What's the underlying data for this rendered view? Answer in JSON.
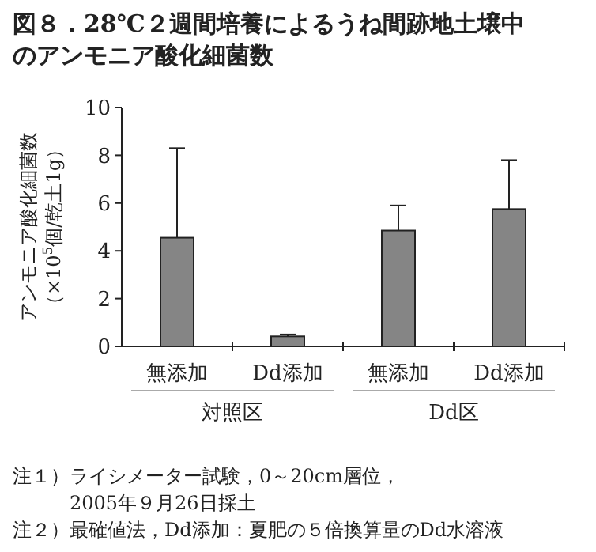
{
  "chart_data": {
    "type": "bar",
    "title": "図８．28℃２週間培養によるうね間跡地土壌中のアンモニア酸化細菌数",
    "ylabel": "アンモニア酸化細菌数（×10$^{5}$個/乾土1g）",
    "categories": [
      "無添加",
      "Dd添加",
      "無添加",
      "Dd添加"
    ],
    "values": [
      4.55,
      0.42,
      4.85,
      5.75
    ],
    "errors": [
      [
        4.55,
        8.3
      ],
      [
        0.42,
        0.5
      ],
      [
        4.85,
        5.9
      ],
      [
        5.75,
        7.8
      ]
    ],
    "color": "#858585",
    "ylim": [
      0,
      10
    ],
    "yticks": [
      0,
      2,
      4,
      6,
      8,
      10
    ],
    "annotations": [
      "対照区",
      "Dd区",
      "注１）ライシメーター試験，0～20cm層位，2005年９月26日採土",
      "注２）最確値法，Dd添加：夏肥の５倍換算量のDd水溶液"
    ]
  }
}
